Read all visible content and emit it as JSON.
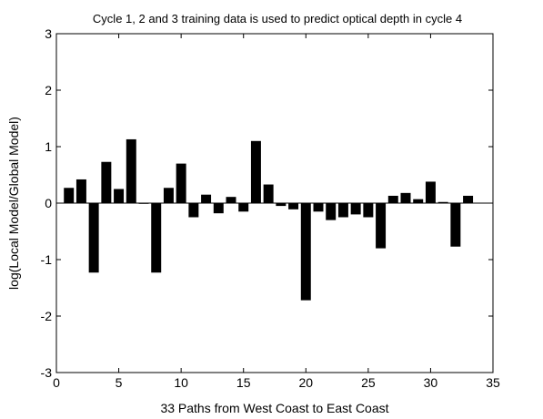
{
  "chart_data": {
    "type": "bar",
    "title": "Cycle 1, 2 and 3 training data is used to predict optical depth in cycle 4",
    "xlabel": "33 Paths from West Coast to East Coast",
    "ylabel": "log(Local Model/Global Model)",
    "xlim": [
      0,
      35
    ],
    "ylim": [
      -3,
      3
    ],
    "xticks": [
      0,
      5,
      10,
      15,
      20,
      25,
      30,
      35
    ],
    "yticks": [
      -3,
      -2,
      -1,
      0,
      1,
      2,
      3
    ],
    "xtick_labels": [
      "0",
      "5",
      "10",
      "15",
      "20",
      "25",
      "30",
      "35"
    ],
    "ytick_labels": [
      "-3",
      "-2",
      "-1",
      "0",
      "1",
      "2",
      "3"
    ],
    "grid": false,
    "bar_color": "#000000",
    "x": [
      1,
      2,
      3,
      4,
      5,
      6,
      7,
      8,
      9,
      10,
      11,
      12,
      13,
      14,
      15,
      16,
      17,
      18,
      19,
      20,
      21,
      22,
      23,
      24,
      25,
      26,
      27,
      28,
      29,
      30,
      31,
      32,
      33
    ],
    "values": [
      0.27,
      0.42,
      -1.23,
      0.73,
      0.25,
      1.13,
      0.0,
      -1.23,
      0.27,
      0.7,
      -0.25,
      0.15,
      -0.18,
      0.11,
      -0.15,
      1.1,
      0.33,
      -0.05,
      -0.11,
      -1.72,
      -0.15,
      -0.3,
      -0.25,
      -0.2,
      -0.25,
      -0.8,
      0.13,
      0.18,
      0.07,
      0.38,
      0.02,
      -0.77,
      0.13
    ]
  }
}
